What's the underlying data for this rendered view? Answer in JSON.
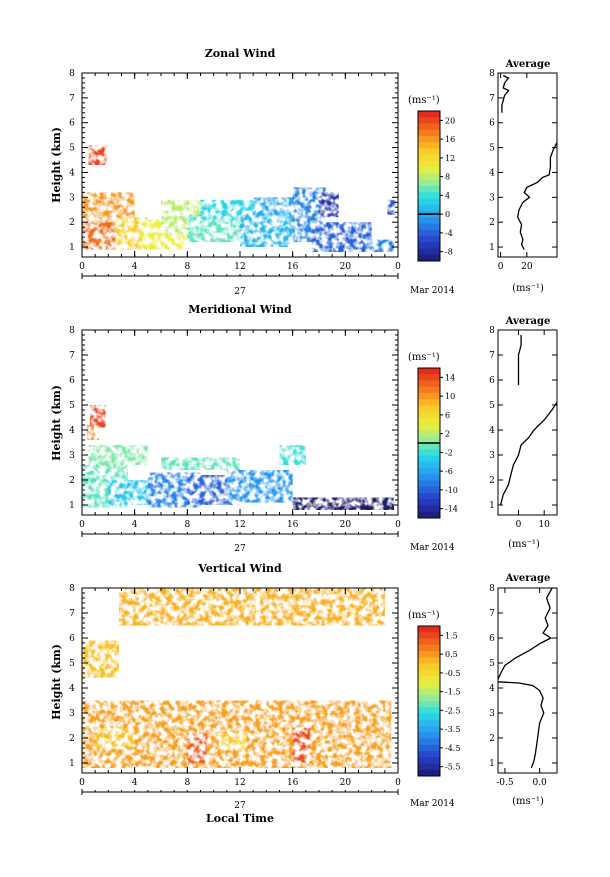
{
  "chart_data": [
    {
      "type": "heatmap",
      "title": "Zonal Wind",
      "ylabel": "Height (km)",
      "xticks": [
        "0",
        "4",
        "8",
        "12",
        "16",
        "20",
        "0"
      ],
      "yticks": [
        "1",
        "2",
        "3",
        "4",
        "5",
        "6",
        "7",
        "8"
      ],
      "ylim": [
        0.6,
        8.0
      ],
      "xlim": [
        0,
        24
      ],
      "day_label": "27",
      "month_label": "Mar 2014",
      "colorbar": {
        "unit": "(ms⁻¹)",
        "ticks": [
          "20",
          "16",
          "12",
          "8",
          "4",
          "0",
          "-4",
          "-8"
        ],
        "range": [
          -10,
          22
        ],
        "contour": 0
      },
      "patches": [
        {
          "t": [
            0.5,
            1.9
          ],
          "h": [
            4.3,
            5.1
          ],
          "v": 20
        },
        {
          "t": [
            0.0,
            3.5
          ],
          "h": [
            0.9,
            2.0
          ],
          "v": 18
        },
        {
          "t": [
            0.0,
            4.0
          ],
          "h": [
            2.0,
            3.2
          ],
          "v": 16
        },
        {
          "t": [
            2.5,
            5.0
          ],
          "h": [
            0.9,
            2.2
          ],
          "v": 13
        },
        {
          "t": [
            4.5,
            8.0
          ],
          "h": [
            0.9,
            2.1
          ],
          "v": 10
        },
        {
          "t": [
            6.0,
            9.0
          ],
          "h": [
            1.5,
            2.9
          ],
          "v": 8
        },
        {
          "t": [
            8.0,
            12.0
          ],
          "h": [
            1.2,
            2.3
          ],
          "v": 5
        },
        {
          "t": [
            9.0,
            13.0
          ],
          "h": [
            2.1,
            2.9
          ],
          "v": 3
        },
        {
          "t": [
            12.0,
            16.0
          ],
          "h": [
            1.0,
            2.4
          ],
          "v": 1
        },
        {
          "t": [
            13.0,
            17.0
          ],
          "h": [
            2.3,
            3.0
          ],
          "v": 0
        },
        {
          "t": [
            16.0,
            18.5
          ],
          "h": [
            1.2,
            3.4
          ],
          "v": -2
        },
        {
          "t": [
            17.5,
            22.0
          ],
          "h": [
            0.8,
            2.0
          ],
          "v": -4
        },
        {
          "t": [
            18.0,
            19.5
          ],
          "h": [
            2.2,
            3.2
          ],
          "v": -7
        },
        {
          "t": [
            21.5,
            23.7
          ],
          "h": [
            0.8,
            1.3
          ],
          "v": -2
        },
        {
          "t": [
            23.2,
            23.8
          ],
          "h": [
            2.3,
            2.9
          ],
          "v": -5
        }
      ],
      "profile": {
        "title": "Average",
        "xlabel": "(ms⁻¹)",
        "xticks": [
          0,
          20
        ],
        "xlim": [
          -2,
          43
        ],
        "segments": [
          [
            [
              2,
              7.9
            ],
            [
              6,
              7.8
            ],
            [
              3,
              7.6
            ],
            [
              2,
              7.4
            ],
            [
              6,
              7.3
            ],
            [
              3,
              7.1
            ],
            [
              2,
              6.9
            ],
            [
              1,
              6.7
            ],
            [
              1,
              6.4
            ]
          ],
          [
            [
              43,
              5.2
            ],
            [
              40,
              4.9
            ],
            [
              38,
              4.6
            ],
            [
              38,
              4.2
            ],
            [
              37,
              3.9
            ],
            [
              32,
              3.8
            ],
            [
              28,
              3.6
            ],
            [
              20,
              3.4
            ],
            [
              18,
              3.2
            ],
            [
              22,
              3.0
            ],
            [
              17,
              2.8
            ],
            [
              14,
              2.5
            ],
            [
              13,
              2.2
            ],
            [
              16,
              1.9
            ],
            [
              15,
              1.6
            ],
            [
              17,
              1.3
            ],
            [
              16,
              1.1
            ],
            [
              18,
              0.9
            ]
          ]
        ]
      }
    },
    {
      "type": "heatmap",
      "title": "Meridional Wind",
      "ylabel": "Height (km)",
      "xticks": [
        "0",
        "4",
        "8",
        "12",
        "16",
        "20",
        "0"
      ],
      "yticks": [
        "1",
        "2",
        "3",
        "4",
        "5",
        "6",
        "7",
        "8"
      ],
      "ylim": [
        0.6,
        8.0
      ],
      "xlim": [
        0,
        24
      ],
      "day_label": "27",
      "month_label": "Mar 2014",
      "colorbar": {
        "unit": "(ms⁻¹)",
        "ticks": [
          "14",
          "10",
          "6",
          "2",
          "-2",
          "-6",
          "-10",
          "-14"
        ],
        "range": [
          -16,
          16
        ],
        "contour": 0
      },
      "patches": [
        {
          "t": [
            0.6,
            1.8
          ],
          "h": [
            4.1,
            5.0
          ],
          "v": 14
        },
        {
          "t": [
            0.4,
            1.3
          ],
          "h": [
            3.6,
            4.2
          ],
          "v": 11
        },
        {
          "t": [
            0.0,
            3.5
          ],
          "h": [
            0.9,
            2.6
          ],
          "v": -1
        },
        {
          "t": [
            0.5,
            5.0
          ],
          "h": [
            2.6,
            3.4
          ],
          "v": 0
        },
        {
          "t": [
            2.0,
            6.0
          ],
          "h": [
            1.0,
            2.0
          ],
          "v": -4
        },
        {
          "t": [
            5.0,
            9.0
          ],
          "h": [
            0.9,
            2.3
          ],
          "v": -8
        },
        {
          "t": [
            6.0,
            12.0
          ],
          "h": [
            2.4,
            2.9
          ],
          "v": -1
        },
        {
          "t": [
            8.0,
            12.0
          ],
          "h": [
            1.0,
            2.2
          ],
          "v": -10
        },
        {
          "t": [
            11.0,
            16.0
          ],
          "h": [
            1.1,
            2.4
          ],
          "v": -7
        },
        {
          "t": [
            15.0,
            17.0
          ],
          "h": [
            2.6,
            3.4
          ],
          "v": -2
        },
        {
          "t": [
            16.0,
            23.7
          ],
          "h": [
            0.8,
            1.3
          ],
          "v": -16
        }
      ],
      "profile": {
        "title": "Average",
        "xlabel": "(ms⁻¹)",
        "xticks": [
          0,
          10
        ],
        "xlim": [
          -8,
          15
        ],
        "segments": [
          [
            [
              1,
              7.8
            ],
            [
              1,
              7.4
            ],
            [
              0,
              7.0
            ],
            [
              0,
              6.4
            ],
            [
              0,
              5.8
            ]
          ],
          [
            [
              15,
              5.1
            ],
            [
              13,
              4.8
            ],
            [
              10,
              4.4
            ],
            [
              6,
              4.0
            ],
            [
              4,
              3.7
            ],
            [
              1,
              3.4
            ],
            [
              0,
              3.0
            ],
            [
              -2,
              2.6
            ],
            [
              -3,
              2.2
            ],
            [
              -4,
              1.8
            ],
            [
              -6,
              1.4
            ],
            [
              -7,
              1.0
            ]
          ]
        ]
      }
    },
    {
      "type": "heatmap",
      "title": "Vertical Wind",
      "ylabel": "Height (km)",
      "xlabel": "Local Time",
      "xticks": [
        "0",
        "4",
        "8",
        "12",
        "16",
        "20",
        "0"
      ],
      "yticks": [
        "1",
        "2",
        "3",
        "4",
        "5",
        "6",
        "7",
        "8"
      ],
      "ylim": [
        0.6,
        8.0
      ],
      "xlim": [
        0,
        24
      ],
      "day_label": "27",
      "month_label": "Mar 2014",
      "colorbar": {
        "unit": "(ms⁻¹)",
        "ticks": [
          "1.5",
          "0.5",
          "-0.5",
          "-1.5",
          "-2.5",
          "-3.5",
          "-4.5",
          "-5.5"
        ],
        "range": [
          -6,
          2
        ]
      },
      "patches": [
        {
          "t": [
            0.0,
            23.5
          ],
          "h": [
            0.8,
            3.5
          ],
          "v": 0.4
        },
        {
          "t": [
            0.4,
            2.4
          ],
          "h": [
            4.5,
            5.6
          ],
          "v": -1.3
        },
        {
          "t": [
            0.0,
            2.8
          ],
          "h": [
            4.4,
            5.9
          ],
          "v": 0.0
        },
        {
          "t": [
            2.8,
            23.0
          ],
          "h": [
            6.5,
            8.0
          ],
          "v": 0.2
        },
        {
          "t": [
            8.0,
            9.5
          ],
          "h": [
            1.0,
            2.2
          ],
          "v": 1.2
        },
        {
          "t": [
            16.0,
            17.3
          ],
          "h": [
            1.0,
            2.4
          ],
          "v": 1.4
        },
        {
          "t": [
            1.0,
            4.0
          ],
          "h": [
            1.6,
            2.4
          ],
          "v": 0.0
        },
        {
          "t": [
            10.5,
            12.5
          ],
          "h": [
            1.5,
            2.2
          ],
          "v": -0.2
        }
      ],
      "profile": {
        "title": "Average",
        "xlabel": "(ms⁻¹)",
        "xticks": [
          -0.5,
          0.0
        ],
        "xlim": [
          -0.6,
          0.25
        ],
        "segments": [
          [
            [
              0.18,
              8.0
            ],
            [
              0.1,
              7.6
            ],
            [
              0.15,
              7.2
            ],
            [
              0.08,
              6.8
            ],
            [
              0.12,
              6.5
            ],
            [
              0.05,
              6.2
            ],
            [
              0.16,
              6.0
            ],
            [
              0.02,
              5.8
            ],
            [
              -0.15,
              5.5
            ],
            [
              -0.35,
              5.2
            ],
            [
              -0.5,
              4.9
            ],
            [
              -0.56,
              4.6
            ],
            [
              -0.6,
              4.35
            ]
          ],
          [
            [
              -0.6,
              4.25
            ],
            [
              -0.3,
              4.2
            ],
            [
              -0.1,
              4.1
            ],
            [
              0.0,
              3.9
            ],
            [
              0.05,
              3.6
            ],
            [
              0.02,
              3.3
            ],
            [
              0.06,
              3.0
            ],
            [
              0.0,
              2.6
            ],
            [
              -0.02,
              2.2
            ],
            [
              -0.04,
              1.8
            ],
            [
              -0.06,
              1.4
            ],
            [
              -0.08,
              1.1
            ],
            [
              -0.12,
              0.8
            ]
          ]
        ]
      }
    }
  ]
}
